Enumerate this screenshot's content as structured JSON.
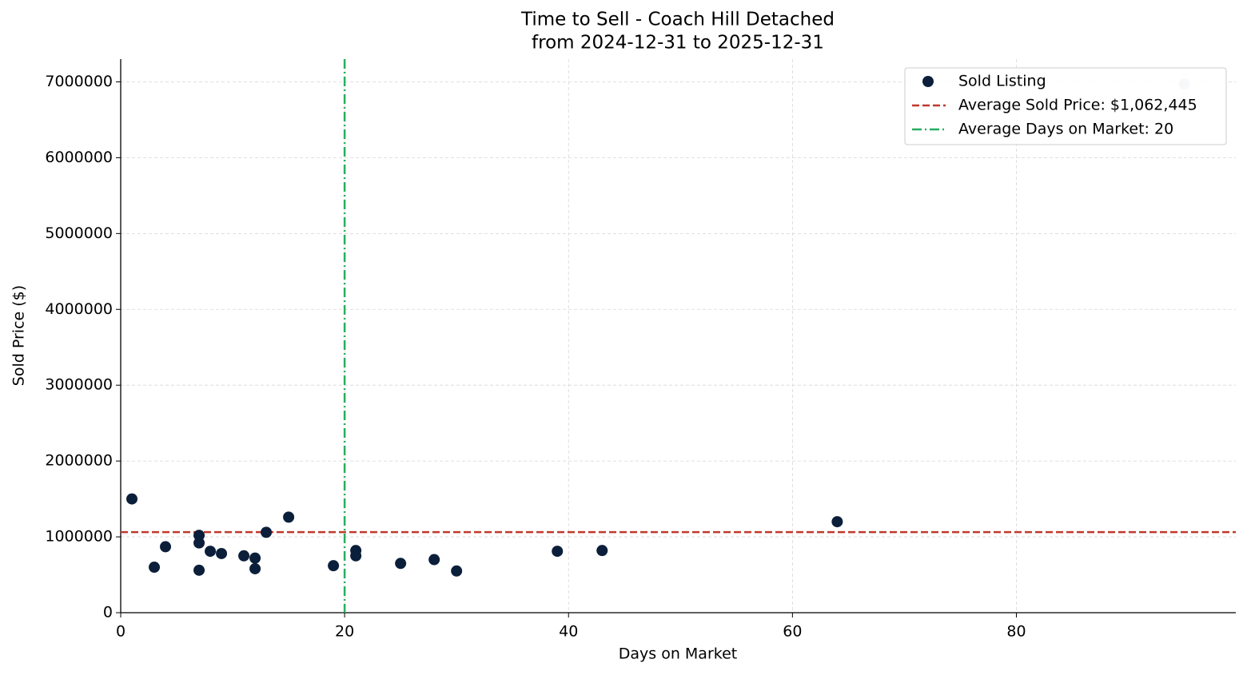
{
  "chart_data": {
    "type": "scatter",
    "title": "Time to Sell - Coach Hill Detached",
    "subtitle": "from 2024-12-31 to 2025-12-31",
    "x_label": "Days on Market",
    "y_label": "Sold Price ($)",
    "xlim": [
      0,
      99.6
    ],
    "xticks": [
      0,
      20,
      40,
      60,
      80
    ],
    "ylim": [
      0,
      7300000
    ],
    "yticks": [
      0,
      1000000,
      2000000,
      3000000,
      4000000,
      5000000,
      6000000,
      7000000
    ],
    "grid": true,
    "legend": "upper right",
    "series": [
      {
        "name": "Sold Listing",
        "color": "#0b1f3a",
        "x": [
          1,
          3,
          4,
          7,
          7,
          7,
          8,
          9,
          11,
          12,
          12,
          13,
          15,
          19,
          21,
          21,
          25,
          28,
          30,
          39,
          43,
          64
        ],
        "values": [
          1500000,
          600000,
          870000,
          1020000,
          920000,
          560000,
          810000,
          780000,
          750000,
          720000,
          580000,
          1060000,
          1260000,
          620000,
          820000,
          750000,
          650000,
          700000,
          550000,
          810000,
          820000,
          1200000
        ]
      },
      {
        "color": "#c8d0d9",
        "x": [
          95
        ],
        "values": [
          6970000
        ]
      }
    ],
    "hline": {
      "value": 1062445,
      "label": "Average Sold Price: $1,062,445",
      "color": "#c0392b"
    },
    "vline": {
      "value": 20,
      "label": "Average Days on Market: 20",
      "color": "#27ae60"
    }
  }
}
